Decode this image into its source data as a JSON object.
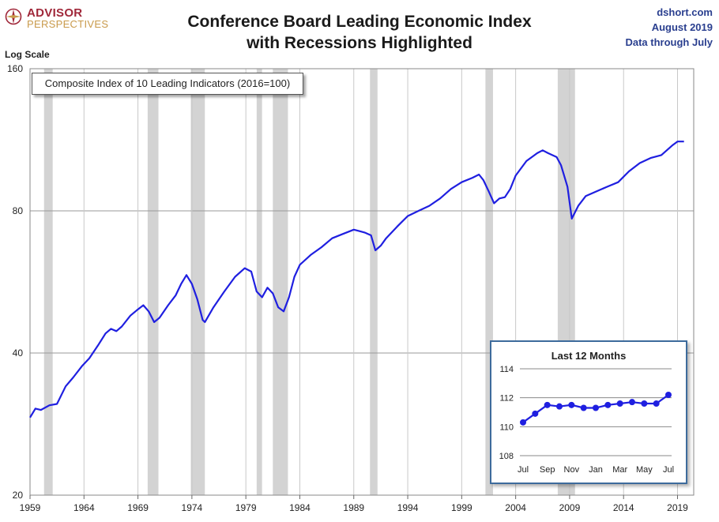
{
  "header": {
    "logo_line1": "ADVISOR",
    "logo_line2": "PERSPECTIVES",
    "title_line1": "Conference Board Leading Economic Index",
    "title_line2": "with Recessions Highlighted",
    "source_site": "dshort.com",
    "source_date": "August 2019",
    "source_note": "Data through July"
  },
  "chart_data": [
    {
      "type": "line",
      "title": "Conference Board Leading Economic Index with Recessions Highlighted",
      "scale_note": "Log Scale",
      "y_scale": "log",
      "ylim": [
        20,
        160
      ],
      "y_ticks": [
        20,
        40,
        80,
        160
      ],
      "xlim": [
        1959,
        2020.5
      ],
      "x_ticks": [
        1959,
        1964,
        1969,
        1974,
        1979,
        1984,
        1989,
        1994,
        1999,
        2004,
        2009,
        2014,
        2019
      ],
      "grid": true,
      "line_color": "#1f1fe0",
      "series": [
        {
          "name": "Composite Index of 10 Leading Indicators (2016=100)",
          "x": [
            1959.0,
            1959.5,
            1960.0,
            1960.8,
            1961.5,
            1962.3,
            1963.0,
            1963.8,
            1964.5,
            1965.3,
            1966.0,
            1966.5,
            1967.0,
            1967.5,
            1968.3,
            1969.0,
            1969.5,
            1970.0,
            1970.5,
            1971.0,
            1971.8,
            1972.5,
            1973.0,
            1973.5,
            1974.0,
            1974.5,
            1975.0,
            1975.2,
            1976.0,
            1977.0,
            1978.0,
            1978.9,
            1979.5,
            1980.0,
            1980.5,
            1981.0,
            1981.5,
            1982.0,
            1982.5,
            1983.0,
            1983.5,
            1984.0,
            1985.0,
            1986.0,
            1987.0,
            1988.0,
            1989.0,
            1989.5,
            1990.0,
            1990.6,
            1991.0,
            1991.5,
            1992.0,
            1993.0,
            1994.0,
            1995.0,
            1996.0,
            1997.0,
            1998.0,
            1999.0,
            2000.0,
            2000.6,
            2001.0,
            2001.5,
            2002.0,
            2002.5,
            2003.0,
            2003.5,
            2004.0,
            2005.0,
            2006.0,
            2006.5,
            2007.0,
            2007.8,
            2008.2,
            2008.8,
            2009.2,
            2009.8,
            2010.5,
            2011.5,
            2012.5,
            2013.5,
            2014.5,
            2015.5,
            2016.5,
            2017.5,
            2018.5,
            2019.0,
            2019.6
          ],
          "values": [
            29.2,
            30.5,
            30.3,
            31.0,
            31.2,
            34.0,
            35.5,
            37.5,
            39.0,
            41.5,
            44.0,
            45.0,
            44.5,
            45.5,
            48.0,
            49.5,
            50.5,
            49.0,
            46.5,
            47.5,
            50.5,
            53.0,
            56.0,
            58.5,
            56.0,
            52.0,
            47.0,
            46.5,
            50.0,
            54.0,
            58.0,
            60.5,
            59.5,
            54.0,
            52.5,
            55.0,
            53.5,
            50.0,
            49.0,
            52.5,
            58.0,
            61.5,
            64.5,
            67.0,
            70.0,
            71.5,
            73.0,
            72.5,
            72.0,
            71.0,
            66.0,
            67.5,
            70.0,
            74.0,
            78.0,
            80.0,
            82.0,
            85.0,
            89.0,
            92.0,
            94.0,
            95.5,
            93.0,
            88.0,
            83.0,
            85.0,
            85.5,
            89.0,
            95.0,
            102.0,
            106.0,
            107.5,
            106.0,
            104.0,
            100.0,
            90.0,
            77.0,
            82.0,
            86.0,
            88.0,
            90.0,
            92.0,
            97.0,
            101.0,
            103.5,
            105.0,
            110.0,
            112.2,
            112.2
          ]
        }
      ],
      "recessions": [
        [
          1960.3,
          1961.1
        ],
        [
          1969.9,
          1970.9
        ],
        [
          1973.9,
          1975.2
        ],
        [
          1980.0,
          1980.5
        ],
        [
          1981.5,
          1982.9
        ],
        [
          1990.5,
          1991.2
        ],
        [
          2001.2,
          2001.9
        ],
        [
          2007.9,
          2009.5
        ]
      ],
      "recession_color": "#d3d3d3"
    },
    {
      "type": "line",
      "title": "Last 12 Months",
      "ylim": [
        108,
        114
      ],
      "y_ticks": [
        108,
        110,
        112,
        114
      ],
      "categories": [
        "Jul",
        "Aug",
        "Sep",
        "Oct",
        "Nov",
        "Dec",
        "Jan",
        "Feb",
        "Mar",
        "Apr",
        "May",
        "Jun",
        "Jul"
      ],
      "x_tick_labels": [
        "Jul",
        "Sep",
        "Nov",
        "Jan",
        "Mar",
        "May",
        "Jul"
      ],
      "grid": true,
      "series": [
        {
          "name": "LEI",
          "values": [
            110.3,
            110.9,
            111.5,
            111.4,
            111.5,
            111.3,
            111.3,
            111.5,
            111.6,
            111.7,
            111.6,
            111.6,
            112.2
          ]
        }
      ]
    }
  ]
}
